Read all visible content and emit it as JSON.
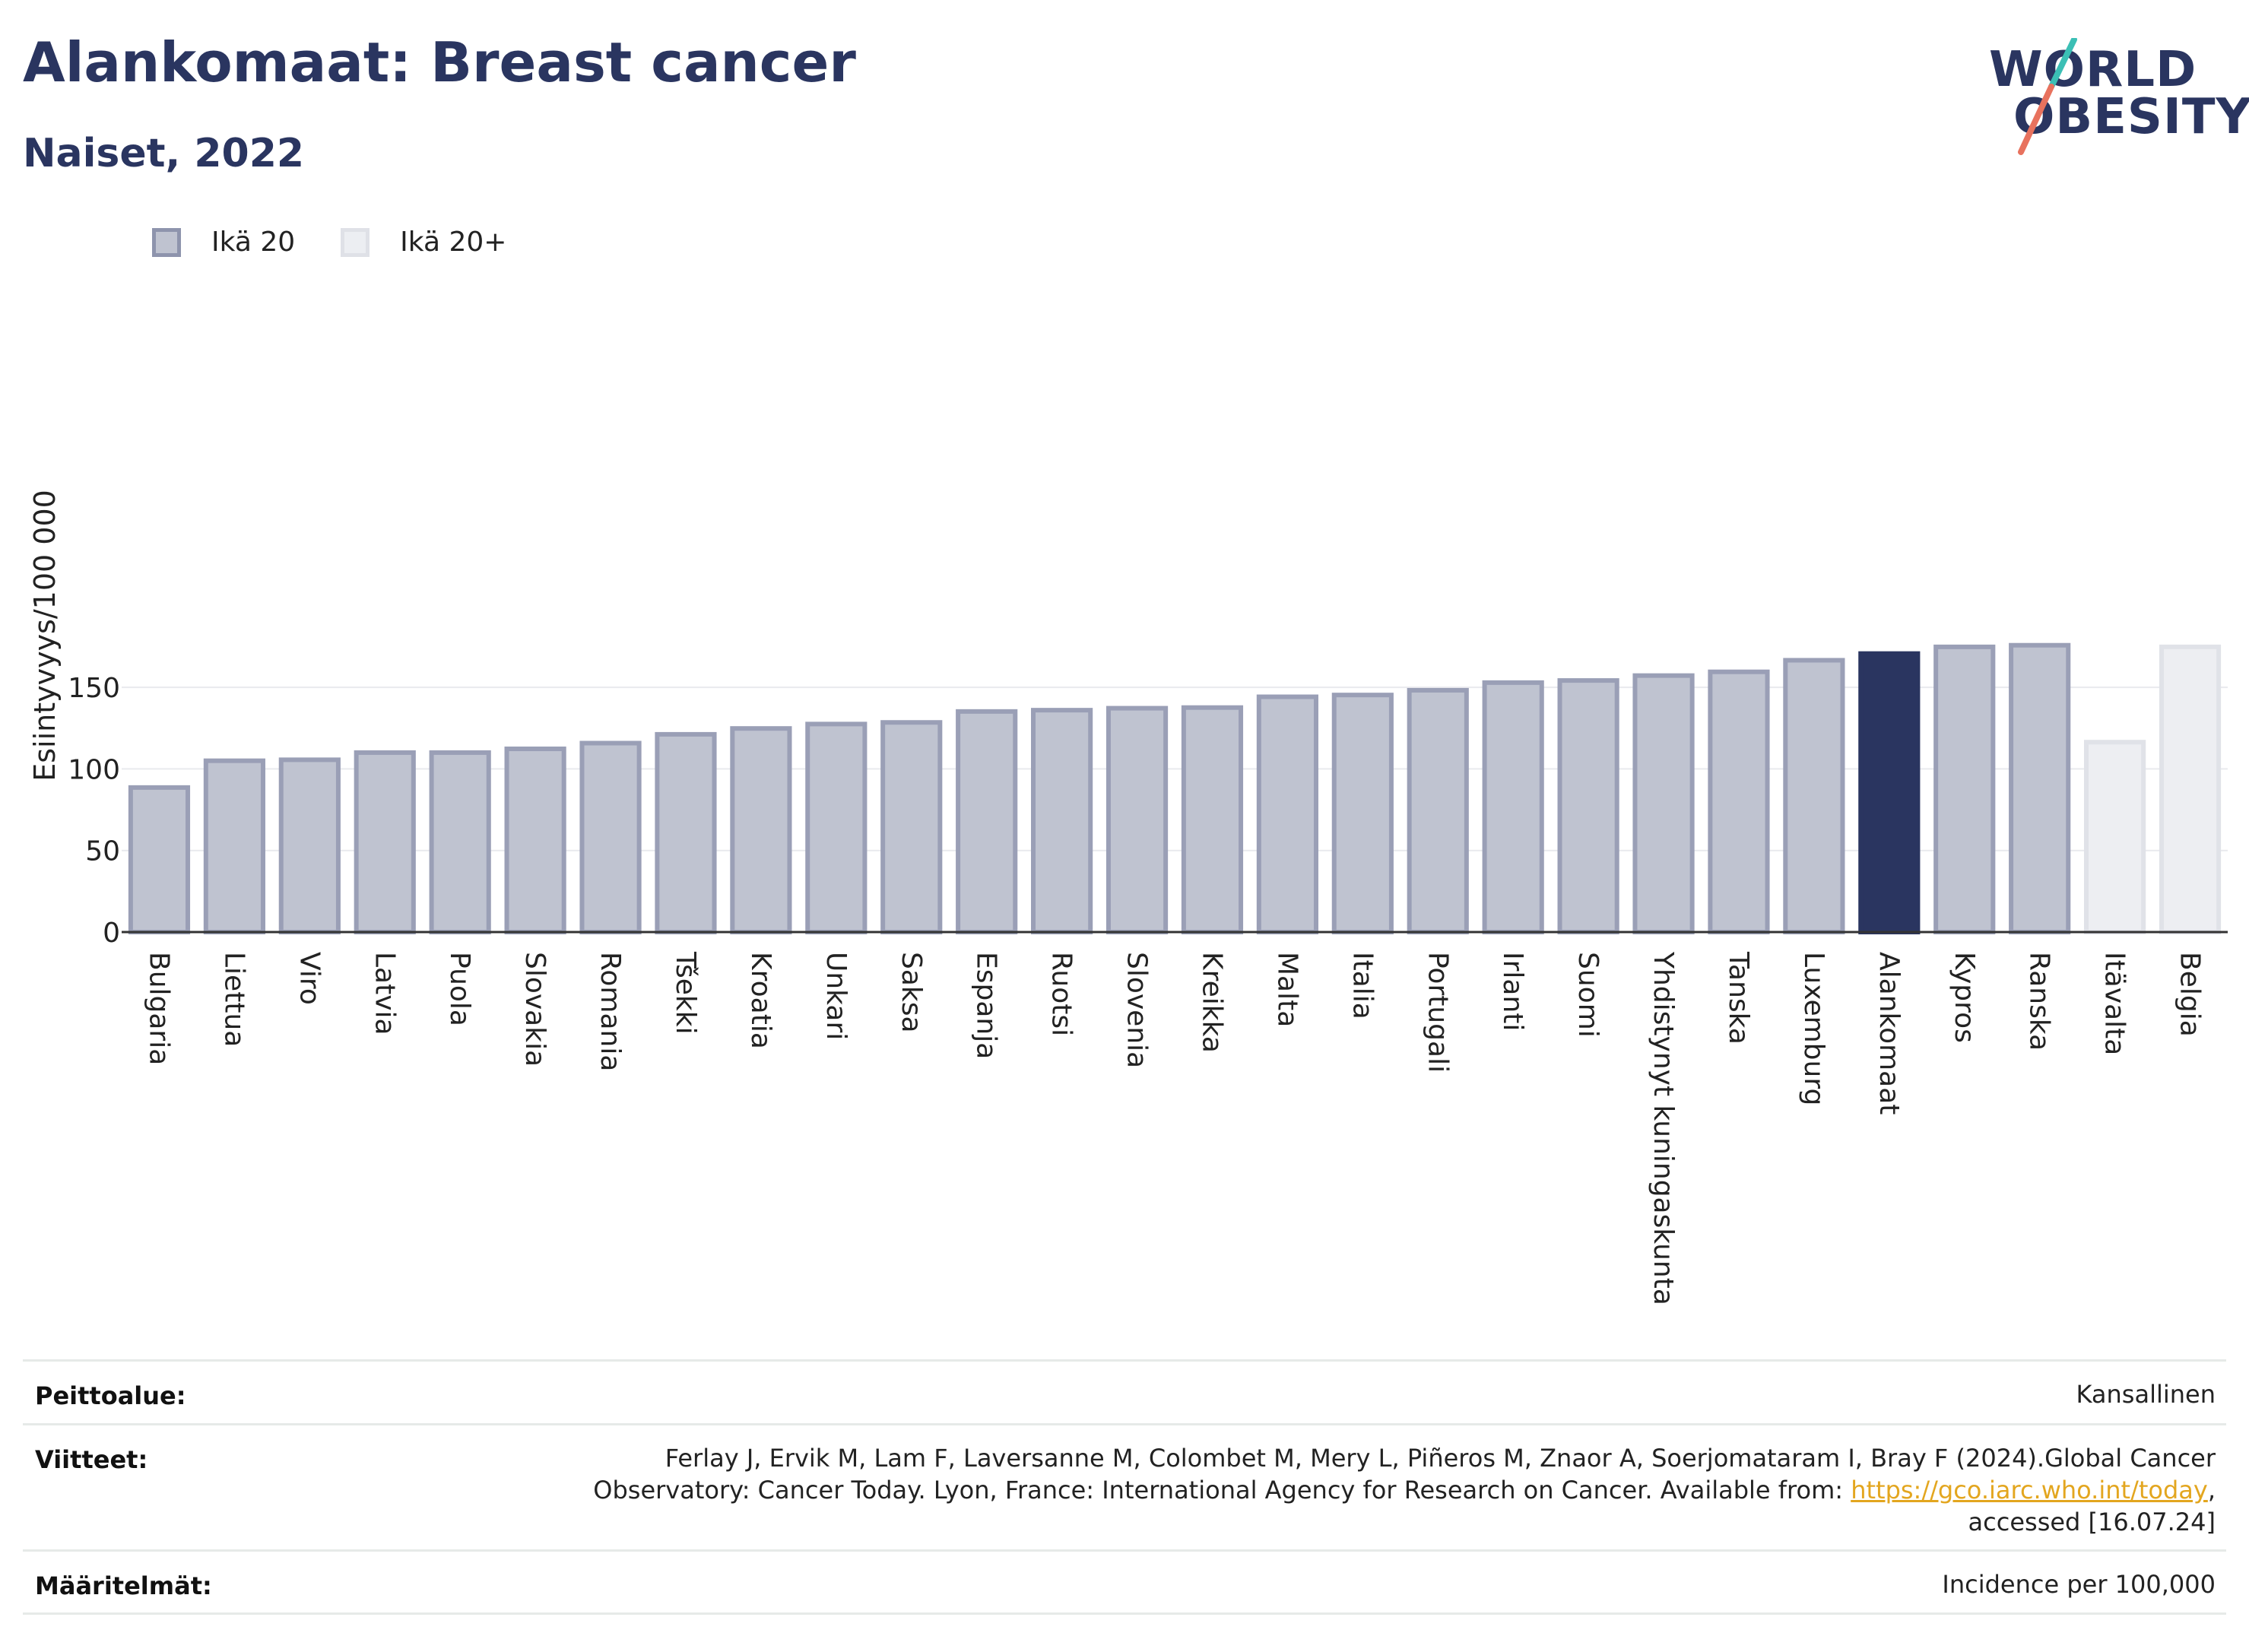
{
  "title": "Alankomaat: Breast cancer",
  "subtitle": "Naiset, 2022",
  "logo": {
    "line1": "WORLD",
    "line2": "OBESITY"
  },
  "legend": [
    {
      "label": "Ikä 20",
      "color": "#bfc3d0",
      "border": "#8e94ad"
    },
    {
      "label": "Ikä 20+",
      "color": "#eceef2",
      "border": "#dfe1e7"
    }
  ],
  "colors": {
    "age20_fill": "#bfc3d0",
    "age20_stroke": "#9a9fb6",
    "highlight": "#2a3560",
    "age20plus_fill": "#edeef2",
    "age20plus_stroke": "#e0e2e8"
  },
  "chart_data": {
    "type": "bar",
    "ylabel": "Esiintyvyys/100 000",
    "xlabel": "",
    "ylim": [
      0,
      185
    ],
    "yticks": [
      0,
      50,
      100,
      150
    ],
    "grid": true,
    "legend_position": "top-left",
    "highlight": "Alankomaat",
    "categories": [
      "Bulgaria",
      "Liettua",
      "Viro",
      "Latvia",
      "Puola",
      "Slovakia",
      "Romania",
      "Tšekki",
      "Kroatia",
      "Unkari",
      "Saksa",
      "Espanja",
      "Ruotsi",
      "Slovenia",
      "Kreikka",
      "Malta",
      "Italia",
      "Portugali",
      "Irlanti",
      "Suomi",
      "Yhdistynyt kuningaskunta",
      "Tanska",
      "Luxemburg",
      "Alankomaat",
      "Kypros",
      "Ranska",
      "Itävalta",
      "Belgia"
    ],
    "values": [
      88.6,
      105,
      105.6,
      110,
      110,
      112.3,
      115.8,
      121.2,
      124.8,
      127.5,
      128.5,
      135.2,
      136,
      137.2,
      137.6,
      144.2,
      145.3,
      148.2,
      152.9,
      154.2,
      157.2,
      159.5,
      166.6,
      170.7,
      174.8,
      175.8,
      116.4,
      174.8
    ],
    "series_groups": [
      "Ikä 20",
      "Ikä 20",
      "Ikä 20",
      "Ikä 20",
      "Ikä 20",
      "Ikä 20",
      "Ikä 20",
      "Ikä 20",
      "Ikä 20",
      "Ikä 20",
      "Ikä 20",
      "Ikä 20",
      "Ikä 20",
      "Ikä 20",
      "Ikä 20",
      "Ikä 20",
      "Ikä 20",
      "Ikä 20",
      "Ikä 20",
      "Ikä 20",
      "Ikä 20",
      "Ikä 20",
      "Ikä 20",
      "Ikä 20",
      "Ikä 20",
      "Ikä 20",
      "Ikä 20+",
      "Ikä 20+"
    ]
  },
  "meta": {
    "coverage_label": "Peittoalue:",
    "coverage_value": "Kansallinen",
    "references_label": "Viitteet:",
    "references_line1": "Ferlay J, Ervik M, Lam F, Laversanne M, Colombet M, Mery L, Piñeros M, Znaor A, Soerjomataram I, Bray F (2024).Global Cancer",
    "references_line2_pre": "Observatory: Cancer Today. Lyon, France: International Agency for Research on Cancer. Available from: ",
    "references_link": "https://gco.iarc.who.int/today",
    "references_line2_post": ",",
    "references_line3": "accessed [16.07.24]",
    "definitions_label": "Määritelmät:",
    "definitions_value": "Incidence per 100,000"
  }
}
